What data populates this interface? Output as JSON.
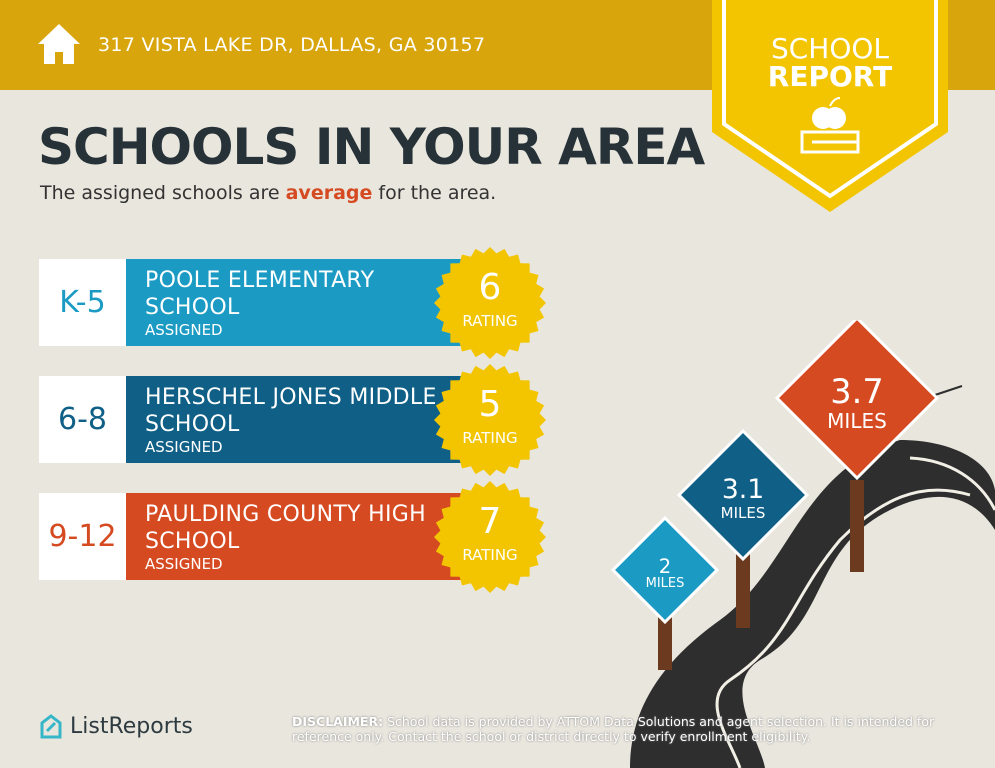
{
  "header": {
    "address": "317 VISTA LAKE DR, DALLAS, GA 30157",
    "icon": "home-icon"
  },
  "badge": {
    "line1": "SCHOOL",
    "line2": "REPORT",
    "icon": "apple-book-icon"
  },
  "title": "SCHOOLS IN YOUR AREA",
  "subtitle": {
    "before": "The assigned schools are ",
    "highlight": "average",
    "after": " for the area."
  },
  "schools": [
    {
      "grade": "K-5",
      "name": "POOLE ELEMENTARY SCHOOL",
      "status": "ASSIGNED",
      "rating": "6",
      "rating_label": "RATING",
      "color": "#1b9bc4"
    },
    {
      "grade": "6-8",
      "name": "HERSCHEL JONES MIDDLE SCHOOL",
      "status": "ASSIGNED",
      "rating": "5",
      "rating_label": "RATING",
      "color": "#0f5f86"
    },
    {
      "grade": "9-12",
      "name": "PAULDING COUNTY HIGH SCHOOL",
      "status": "ASSIGNED",
      "rating": "7",
      "rating_label": "RATING",
      "color": "#d64a22"
    }
  ],
  "distances": [
    {
      "value": "2",
      "unit": "MILES",
      "color": "#1b9bc4"
    },
    {
      "value": "3.1",
      "unit": "MILES",
      "color": "#0f5f86"
    },
    {
      "value": "3.7",
      "unit": "MILES",
      "color": "#d64a22"
    }
  ],
  "footer": {
    "logo": "ListReports",
    "disclaimer_label": "DISCLAIMER:",
    "disclaimer": " School data is provided by ATTOM Data Solutions and agent selection. It is intended for reference only. Contact the school or district directly to verify enrollment eligibility."
  },
  "colors": {
    "header": "#d9a50c",
    "badge": "#f2c500",
    "burst": "#f2c500"
  }
}
